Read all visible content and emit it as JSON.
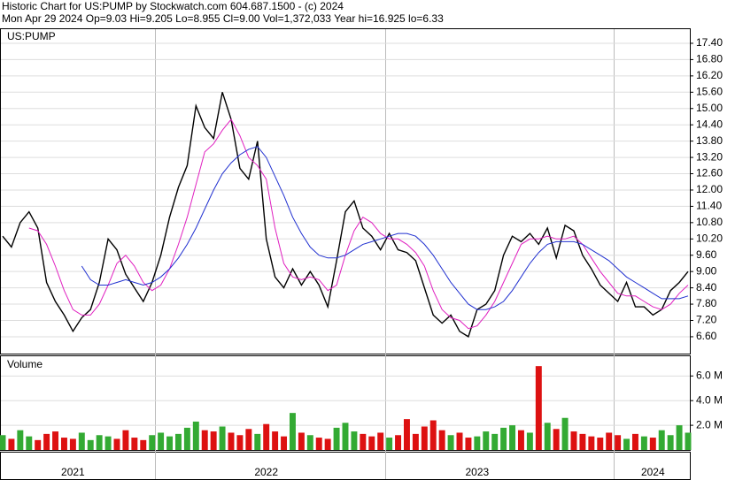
{
  "chart_data": {
    "type": "stock",
    "title": "Historic Chart for US:PUMP by Stockwatch.com 604.687.1500 - (c) 2024",
    "subtitle": "Mon Apr 29 2024  Op=9.03  Hi=9.205  Lo=8.955  Cl=9.00  Vol=1,372,033  Year hi=16.925  lo=6.33",
    "panel_label": "US:PUMP",
    "grid": true,
    "categories": [
      null,
      null,
      null,
      null,
      null,
      null,
      null,
      null,
      "2021",
      null,
      null,
      null,
      null,
      null,
      null,
      null,
      null,
      null,
      null,
      null,
      null,
      null,
      null,
      null,
      null,
      null,
      null,
      null,
      null,
      null,
      "2022",
      null,
      null,
      null,
      null,
      null,
      null,
      null,
      null,
      null,
      null,
      null,
      null,
      null,
      null,
      null,
      null,
      null,
      null,
      null,
      null,
      null,
      null,
      null,
      "2023",
      null,
      null,
      null,
      null,
      null,
      null,
      null,
      null,
      null,
      null,
      null,
      null,
      null,
      null,
      null,
      null,
      null,
      null,
      null,
      "2024",
      null,
      null,
      null,
      null
    ],
    "series": [
      {
        "color": "#000000",
        "values": [
          10.3,
          9.9,
          10.8,
          11.2,
          10.6,
          8.6,
          7.9,
          7.4,
          6.8,
          7.3,
          7.6,
          8.6,
          10.2,
          9.8,
          8.9,
          8.4,
          7.9,
          8.6,
          9.6,
          11.0,
          12.1,
          12.9,
          15.1,
          14.3,
          13.9,
          15.6,
          14.6,
          12.8,
          12.4,
          13.8,
          10.2,
          8.8,
          8.4,
          9.1,
          8.5,
          9.0,
          8.5,
          7.7,
          9.4,
          11.2,
          11.6,
          10.6,
          10.3,
          9.8,
          10.4,
          9.8,
          9.7,
          9.4,
          8.4,
          7.4,
          7.1,
          7.4,
          6.8,
          6.6,
          7.6,
          7.8,
          8.3,
          9.6,
          10.3,
          10.1,
          10.4,
          10.0,
          10.6,
          9.5,
          10.7,
          10.5,
          9.6,
          9.1,
          8.5,
          8.2,
          7.9,
          8.6,
          7.7,
          7.7,
          7.4,
          7.6,
          8.3,
          8.6,
          9.0
        ]
      },
      {
        "color": "#e020c0",
        "values": [
          null,
          null,
          null,
          10.6,
          10.5,
          10.0,
          9.2,
          8.3,
          7.6,
          7.4,
          7.4,
          7.8,
          8.5,
          9.3,
          9.6,
          9.2,
          8.6,
          8.3,
          8.5,
          9.1,
          10.0,
          11.0,
          12.2,
          13.4,
          13.7,
          14.2,
          14.6,
          14.0,
          13.2,
          12.9,
          12.4,
          10.6,
          9.3,
          8.8,
          8.7,
          8.8,
          8.7,
          8.3,
          8.5,
          9.6,
          10.5,
          11.0,
          10.8,
          10.4,
          10.2,
          10.2,
          10.0,
          9.7,
          9.2,
          8.3,
          7.6,
          7.3,
          7.2,
          6.9,
          7.0,
          7.4,
          7.9,
          8.6,
          9.3,
          10.0,
          10.2,
          10.2,
          10.3,
          10.2,
          10.2,
          10.3,
          10.0,
          9.5,
          9.0,
          8.6,
          8.2,
          8.1,
          8.1,
          7.9,
          7.7,
          7.6,
          7.8,
          8.2,
          8.5
        ]
      },
      {
        "color": "#2030d0",
        "values": [
          null,
          null,
          null,
          null,
          null,
          null,
          null,
          null,
          null,
          9.2,
          8.7,
          8.5,
          8.5,
          8.6,
          8.7,
          8.6,
          8.5,
          8.6,
          8.8,
          9.1,
          9.5,
          10.0,
          10.6,
          11.3,
          12.0,
          12.6,
          13.0,
          13.3,
          13.5,
          13.6,
          13.2,
          12.5,
          11.8,
          11.0,
          10.4,
          9.9,
          9.6,
          9.5,
          9.5,
          9.6,
          9.8,
          10.0,
          10.1,
          10.2,
          10.3,
          10.4,
          10.4,
          10.3,
          10.0,
          9.6,
          9.1,
          8.6,
          8.2,
          7.8,
          7.6,
          7.6,
          7.7,
          7.9,
          8.3,
          8.8,
          9.3,
          9.7,
          10.0,
          10.1,
          10.1,
          10.1,
          10.0,
          9.8,
          9.6,
          9.4,
          9.1,
          8.8,
          8.6,
          8.4,
          8.2,
          8.0,
          8.0,
          8.0,
          8.1
        ]
      }
    ],
    "ylim": [
      5.98,
      17.92
    ],
    "yticks": [
      {
        "value": 6.6,
        "label": "6.60"
      },
      {
        "value": 7.2,
        "label": "7.20"
      },
      {
        "value": 7.8,
        "label": "7.80"
      },
      {
        "value": 8.4,
        "label": "8.40"
      },
      {
        "value": 9,
        "label": "9.00"
      },
      {
        "value": 9.6,
        "label": "9.60"
      },
      {
        "value": 10.2,
        "label": "10.20"
      },
      {
        "value": 10.8,
        "label": "10.80"
      },
      {
        "value": 11.4,
        "label": "11.40"
      },
      {
        "value": 12,
        "label": "12.00"
      },
      {
        "value": 12.6,
        "label": "12.60"
      },
      {
        "value": 13.2,
        "label": "13.20"
      },
      {
        "value": 13.8,
        "label": "13.80"
      },
      {
        "value": 14.4,
        "label": "14.40"
      },
      {
        "value": 15,
        "label": "15.00"
      },
      {
        "value": 15.6,
        "label": "15.60"
      },
      {
        "value": 16.2,
        "label": "16.20"
      },
      {
        "value": 16.8,
        "label": "16.80"
      },
      {
        "value": 17.4,
        "label": "17.40"
      }
    ],
    "volume": {
      "label": "Volume",
      "up_color": "#33aa33",
      "down_color": "#dd1111",
      "values": [
        1200000,
        900000,
        1600000,
        1100000,
        800000,
        1300000,
        1500000,
        1000000,
        900000,
        1400000,
        800000,
        1200000,
        1100000,
        900000,
        1600000,
        1000000,
        800000,
        1200000,
        1400000,
        1100000,
        1300000,
        1800000,
        2300000,
        1600000,
        1500000,
        1900000,
        1400000,
        1200000,
        1700000,
        1300000,
        2100000,
        1500000,
        1100000,
        3000000,
        1400000,
        1200000,
        1000000,
        900000,
        1800000,
        2200000,
        1500000,
        1300000,
        1100000,
        1400000,
        1000000,
        1200000,
        2500000,
        1300000,
        1900000,
        2400000,
        1600000,
        1200000,
        1400000,
        1000000,
        1100000,
        1500000,
        1300000,
        1800000,
        2000000,
        1600000,
        1400000,
        6800000,
        2200000,
        1700000,
        2600000,
        1500000,
        1300000,
        1100000,
        1000000,
        1400000,
        1200000,
        900000,
        1300000,
        1100000,
        1000000,
        1600000,
        1200000,
        2000000,
        1400000
      ],
      "ylim": [
        0,
        7600000
      ],
      "yticks": [
        {
          "value": 2000000,
          "label": "2.0 M"
        },
        {
          "value": 4000000,
          "label": "4.0 M"
        },
        {
          "value": 6000000,
          "label": "6.0 M"
        }
      ]
    }
  }
}
